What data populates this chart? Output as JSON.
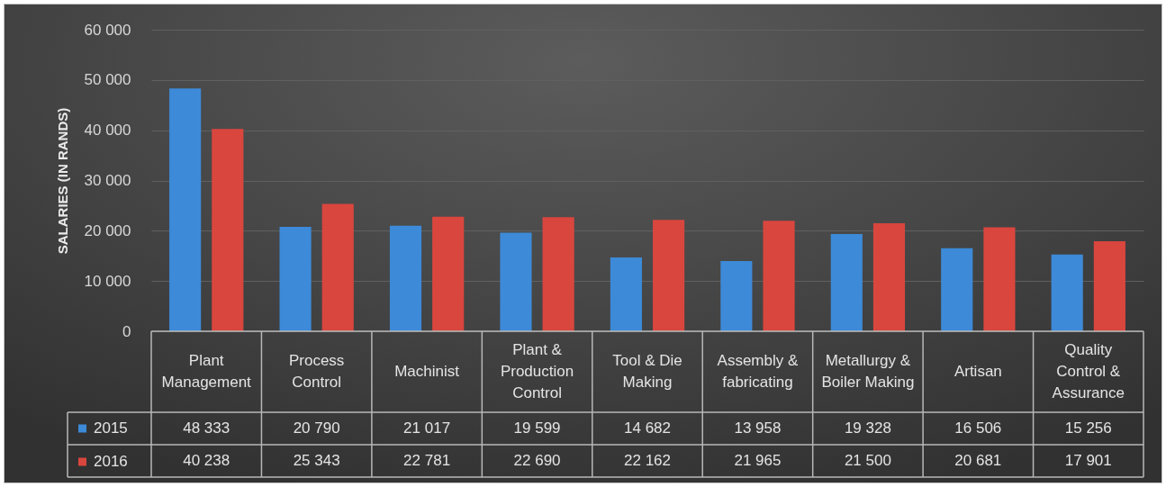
{
  "chart_data": {
    "type": "bar",
    "ylabel": "SALARIES (IN RANDS)",
    "categories": [
      "Plant Management",
      "Process Control",
      "Machinist",
      "Plant & Production Control",
      "Tool & Die Making",
      "Assembly & fabricating",
      "Metallurgy & Boiler Making",
      "Artisan",
      "Quality Control & Assurance"
    ],
    "series": [
      {
        "name": "2015",
        "color": "#3d8ad8",
        "values": [
          48333,
          20790,
          21017,
          19599,
          14682,
          13958,
          19328,
          16506,
          15256
        ],
        "value_labels": [
          "48 333",
          "20 790",
          "21 017",
          "19 599",
          "14 682",
          "13 958",
          "19 328",
          "16 506",
          "15 256"
        ]
      },
      {
        "name": "2016",
        "color": "#d9463e",
        "values": [
          40238,
          25343,
          22781,
          22690,
          22162,
          21965,
          21500,
          20681,
          17901
        ],
        "value_labels": [
          "40 238",
          "25 343",
          "22 781",
          "22 690",
          "22 162",
          "21 965",
          "21 500",
          "20 681",
          "17 901"
        ]
      }
    ],
    "ylim": [
      0,
      60000
    ],
    "yticks": [
      0,
      {
        "value": 10000,
        "label": "10 000"
      },
      {
        "value": 20000,
        "label": "20 000"
      },
      {
        "value": 30000,
        "label": "30 000"
      },
      {
        "value": 40000,
        "label": "40 000"
      },
      {
        "value": 50000,
        "label": "50 000"
      },
      {
        "value": 60000,
        "label": "60 000"
      }
    ],
    "grid": "y",
    "legend": "bottom left"
  }
}
